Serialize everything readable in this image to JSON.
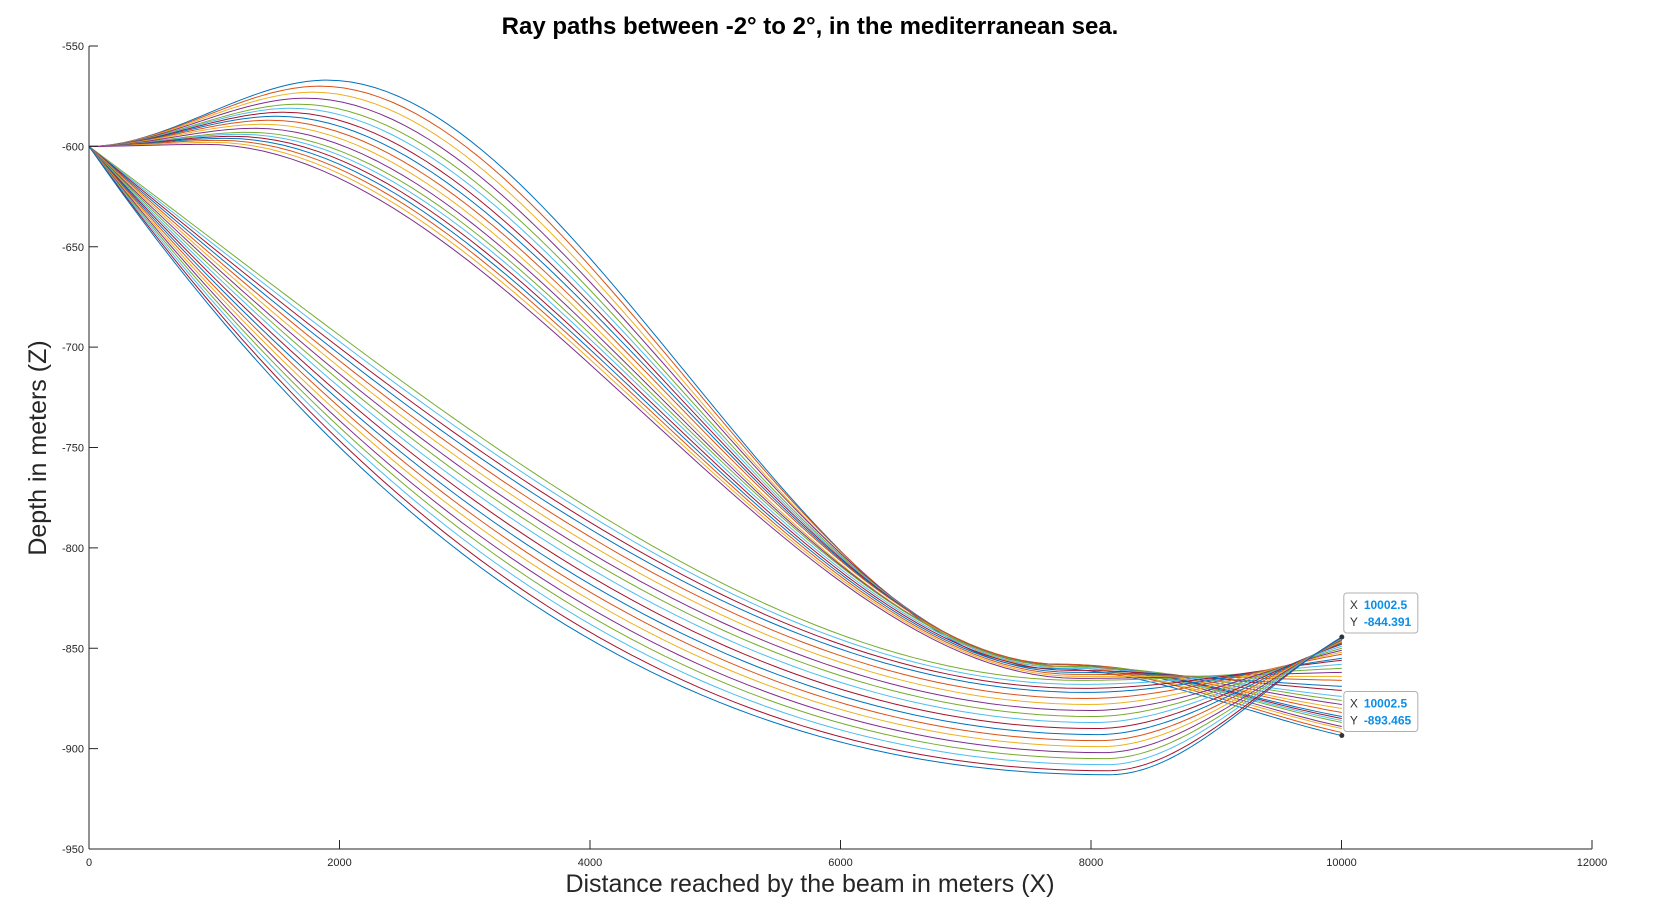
{
  "chart_data": {
    "type": "line",
    "title": "Ray paths between -2° to 2°, in the mediterranean sea.",
    "xlabel": "Distance reached by the beam in meters (X)",
    "ylabel": "Depth in meters (Z)",
    "xlim": [
      0,
      12000
    ],
    "ylim": [
      -950,
      -550
    ],
    "xticks": [
      0,
      2000,
      4000,
      6000,
      8000,
      10000,
      12000
    ],
    "yticks": [
      -550,
      -600,
      -650,
      -700,
      -750,
      -800,
      -850,
      -900,
      -950
    ],
    "grid": false,
    "legend": "none",
    "source": {
      "x": 0,
      "y": -600
    },
    "x_end": 10002.5,
    "colors": [
      "#0072BD",
      "#D95319",
      "#EDB120",
      "#7E2F8E",
      "#77AC30",
      "#4DBEEE",
      "#A2142F"
    ],
    "series": [
      {
        "min_depth": -567,
        "bottom_depth": -860,
        "end_depth": -893.5
      },
      {
        "min_depth": -570,
        "bottom_depth": -859,
        "end_depth": -892
      },
      {
        "min_depth": -573,
        "bottom_depth": -859,
        "end_depth": -890
      },
      {
        "min_depth": -576,
        "bottom_depth": -858,
        "end_depth": -889
      },
      {
        "min_depth": -579,
        "bottom_depth": -858,
        "end_depth": -887
      },
      {
        "min_depth": -581,
        "bottom_depth": -858,
        "end_depth": -886
      },
      {
        "min_depth": -583,
        "bottom_depth": -858,
        "end_depth": -885
      },
      {
        "min_depth": -585,
        "bottom_depth": -858,
        "end_depth": -884
      },
      {
        "min_depth": -587,
        "bottom_depth": -858,
        "end_depth": -882
      },
      {
        "min_depth": -589,
        "bottom_depth": -859,
        "end_depth": -880
      },
      {
        "min_depth": -591,
        "bottom_depth": -859,
        "end_depth": -878
      },
      {
        "min_depth": -593,
        "bottom_depth": -859,
        "end_depth": -876
      },
      {
        "min_depth": -594,
        "bottom_depth": -860,
        "end_depth": -874
      },
      {
        "min_depth": -595,
        "bottom_depth": -861,
        "end_depth": -871
      },
      {
        "min_depth": -596,
        "bottom_depth": -862,
        "end_depth": -869
      },
      {
        "min_depth": -597,
        "bottom_depth": -863,
        "end_depth": -866
      },
      {
        "min_depth": -598,
        "bottom_depth": -864,
        "end_depth": -864
      },
      {
        "min_depth": -599,
        "bottom_depth": -865,
        "end_depth": -862
      },
      {
        "min_depth": -600,
        "bottom_depth": -866,
        "end_depth": -860
      },
      {
        "min_depth": -600,
        "bottom_depth": -868,
        "end_depth": -858
      },
      {
        "min_depth": -600,
        "bottom_depth": -870,
        "end_depth": -856
      },
      {
        "min_depth": -600,
        "bottom_depth": -872,
        "end_depth": -855
      },
      {
        "min_depth": -600,
        "bottom_depth": -875,
        "end_depth": -853
      },
      {
        "min_depth": -600,
        "bottom_depth": -878,
        "end_depth": -852
      },
      {
        "min_depth": -600,
        "bottom_depth": -881,
        "end_depth": -851
      },
      {
        "min_depth": -600,
        "bottom_depth": -884,
        "end_depth": -850
      },
      {
        "min_depth": -600,
        "bottom_depth": -887,
        "end_depth": -849
      },
      {
        "min_depth": -600,
        "bottom_depth": -890,
        "end_depth": -848
      },
      {
        "min_depth": -600,
        "bottom_depth": -893,
        "end_depth": -847.5
      },
      {
        "min_depth": -600,
        "bottom_depth": -896,
        "end_depth": -847
      },
      {
        "min_depth": -600,
        "bottom_depth": -899,
        "end_depth": -846.5
      },
      {
        "min_depth": -600,
        "bottom_depth": -902,
        "end_depth": -846
      },
      {
        "min_depth": -600,
        "bottom_depth": -905,
        "end_depth": -845.5
      },
      {
        "min_depth": -600,
        "bottom_depth": -908,
        "end_depth": -845
      },
      {
        "min_depth": -600,
        "bottom_depth": -911,
        "end_depth": -844.7
      },
      {
        "min_depth": -600,
        "bottom_depth": -913,
        "end_depth": -844.391
      }
    ],
    "datatips": [
      {
        "x_key": "X",
        "x_value": "10002.5",
        "y_key": "Y",
        "y_value": "-844.391",
        "x": 10002.5,
        "y": -844.391
      },
      {
        "x_key": "X",
        "x_value": "10002.5",
        "y_key": "Y",
        "y_value": "-893.465",
        "x": 10002.5,
        "y": -893.465
      }
    ]
  }
}
